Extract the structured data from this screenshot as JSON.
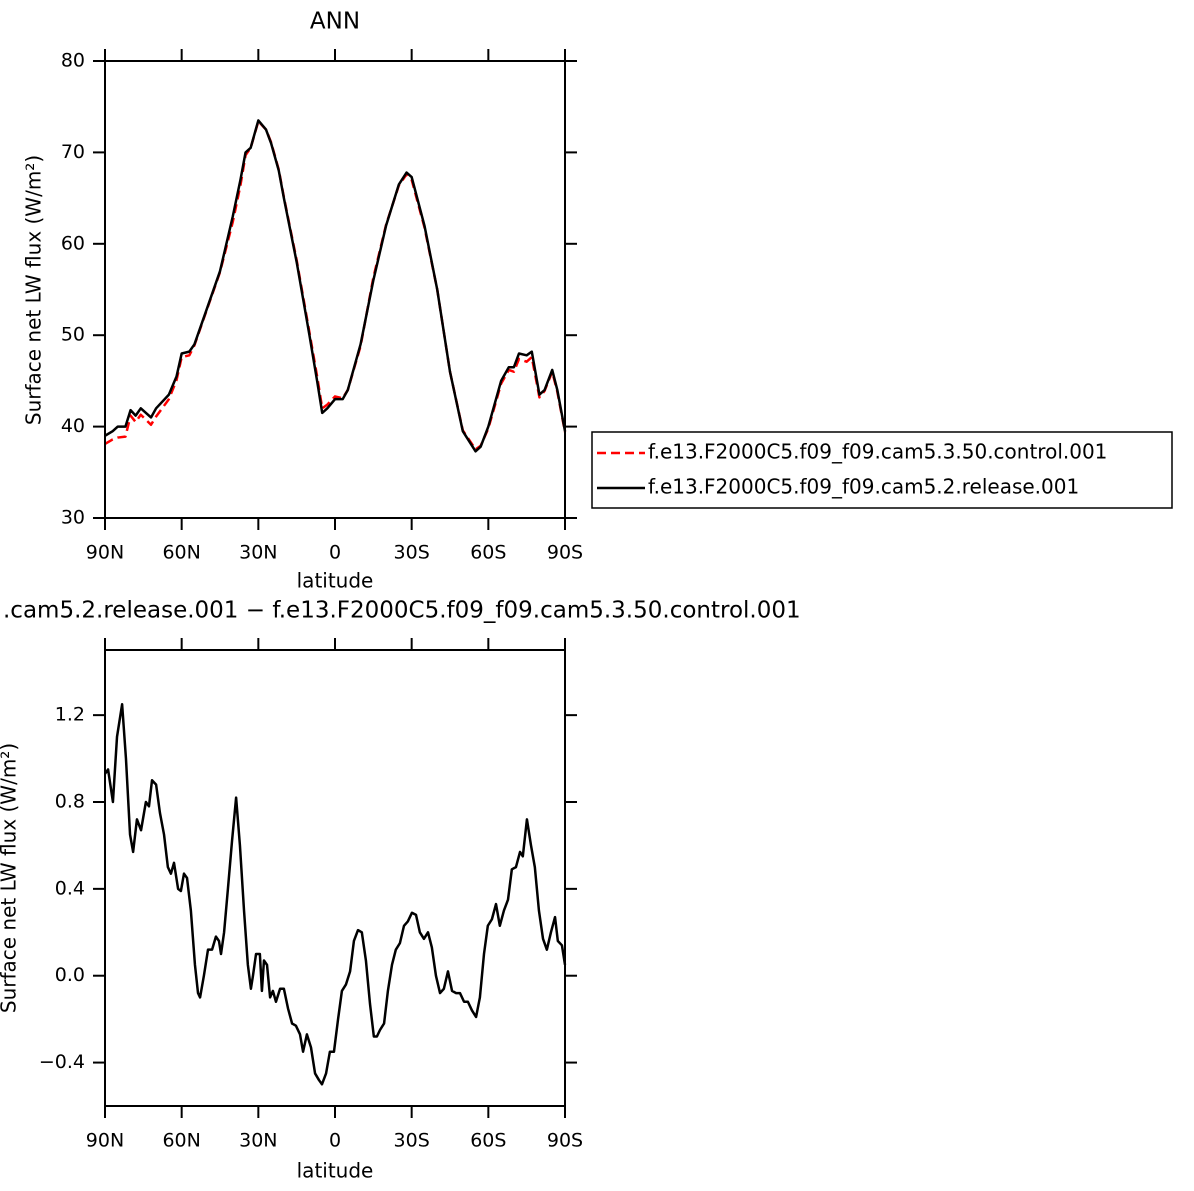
{
  "chart_data": [
    {
      "type": "line",
      "title": "ANN",
      "xlabel": "latitude",
      "ylabel": "Surface net LW flux (W/m²)",
      "x": [
        90,
        87,
        85,
        82,
        80,
        78,
        76,
        72,
        70,
        65,
        62,
        60,
        57,
        55,
        50,
        45,
        40,
        37,
        35,
        33,
        30,
        27,
        25,
        22,
        20,
        15,
        10,
        7,
        5,
        3,
        0,
        -3,
        -5,
        -10,
        -15,
        -20,
        -25,
        -28,
        -30,
        -35,
        -40,
        -45,
        -50,
        -55,
        -57,
        -60,
        -65,
        -68,
        -70,
        -72,
        -75,
        -77,
        -80,
        -82,
        -85,
        -87,
        -90
      ],
      "series": [
        {
          "name": "f.e13.F2000C5.f09_f09.cam5.3.50.control.001",
          "color": "#ff0000",
          "dashed": true,
          "values": [
            38.1,
            38.6,
            38.8,
            38.9,
            41.2,
            40.5,
            41.3,
            40.2,
            41.1,
            43.0,
            45.1,
            47.6,
            47.8,
            48.9,
            52.9,
            56.9,
            62.4,
            66.4,
            69.7,
            70.5,
            73.4,
            72.5,
            71.1,
            68.1,
            65.1,
            58.2,
            50.3,
            45.5,
            42.0,
            42.4,
            43.3,
            43.1,
            44.0,
            48.8,
            56.3,
            62.1,
            66.4,
            67.6,
            67.0,
            61.8,
            55.0,
            46.0,
            39.6,
            37.5,
            37.9,
            39.8,
            44.7,
            46.2,
            46.0,
            47.4,
            47.1,
            47.6,
            43.2,
            43.9,
            46.0,
            43.8,
            39.4
          ]
        },
        {
          "name": "f.e13.F2000C5.f09_f09.cam5.2.release.001",
          "color": "#000000",
          "dashed": false,
          "values": [
            39.0,
            39.5,
            40.0,
            40.0,
            41.8,
            41.2,
            42.0,
            41.0,
            42.0,
            43.5,
            45.5,
            48.0,
            48.2,
            49.0,
            53.0,
            57.0,
            63.0,
            67.0,
            70.0,
            70.5,
            73.5,
            72.5,
            71.0,
            68.0,
            65.0,
            58.0,
            50.0,
            45.0,
            41.5,
            42.0,
            43.0,
            43.0,
            44.0,
            49.0,
            56.0,
            62.0,
            66.5,
            67.8,
            67.3,
            62.0,
            55.0,
            46.0,
            39.5,
            37.3,
            37.8,
            40.0,
            45.0,
            46.5,
            46.5,
            48.0,
            47.8,
            48.2,
            43.5,
            44.0,
            46.2,
            44.0,
            39.5
          ]
        }
      ],
      "xlim": [
        90,
        -90
      ],
      "ylim": [
        30,
        80
      ],
      "xticks": [
        {
          "value": 90,
          "label": "90N"
        },
        {
          "value": 60,
          "label": "60N"
        },
        {
          "value": 30,
          "label": "30N"
        },
        0,
        {
          "value": -30,
          "label": "30S"
        },
        {
          "value": -60,
          "label": "60S"
        },
        {
          "value": -90,
          "label": "90S"
        }
      ],
      "yticks": [
        30,
        40,
        50,
        60,
        70,
        80
      ],
      "legend": "right"
    },
    {
      "type": "line",
      "title": ".cam5.2.release.001 − f.e13.F2000C5.f09_f09.cam5.3.50.control.001",
      "xlabel": "latitude",
      "ylabel": "Surface net LW flux (W/m²)",
      "x": [
        90,
        88.8,
        86.9,
        85.3,
        83.3,
        81.8,
        80.2,
        79.0,
        77.5,
        75.9,
        74.0,
        72.8,
        71.6,
        70.0,
        68.5,
        66.9,
        65.4,
        64.2,
        63.0,
        61.4,
        60.3,
        59.1,
        57.9,
        56.4,
        54.8,
        53.6,
        52.8,
        51.3,
        49.7,
        48.1,
        46.6,
        45.4,
        44.6,
        43.4,
        41.9,
        40.3,
        38.7,
        37.2,
        35.6,
        34.1,
        32.9,
        32.1,
        30.9,
        29.4,
        28.6,
        27.8,
        26.6,
        25.4,
        24.3,
        23.1,
        21.5,
        20.0,
        18.4,
        16.8,
        15.3,
        13.7,
        12.5,
        11.0,
        9.4,
        7.8,
        6.3,
        5.1,
        3.5,
        2.0,
        0.4,
        -1.2,
        -2.7,
        -4.3,
        -5.9,
        -7.4,
        -9.0,
        -10.5,
        -12.1,
        -13.7,
        -15.2,
        -16.4,
        -17.6,
        -19.2,
        -20.7,
        -22.3,
        -23.8,
        -25.4,
        -27.0,
        -28.5,
        -30.1,
        -31.7,
        -33.2,
        -34.8,
        -36.4,
        -37.9,
        -39.5,
        -41.1,
        -42.6,
        -44.2,
        -45.8,
        -47.4,
        -48.9,
        -50.5,
        -52.0,
        -53.6,
        -55.2,
        -56.7,
        -58.3,
        -59.8,
        -61.4,
        -63.0,
        -64.5,
        -66.1,
        -67.7,
        -69.2,
        -70.8,
        -72.4,
        -73.5,
        -75.1,
        -76.7,
        -78.2,
        -79.8,
        -81.4,
        -82.9,
        -84.5,
        -86.1,
        -87.2,
        -88.8,
        -90
      ],
      "series": [
        {
          "color": "#000000",
          "dashed": false,
          "values": [
            0.93,
            0.95,
            0.8,
            1.1,
            1.25,
            1.0,
            0.65,
            0.57,
            0.72,
            0.67,
            0.8,
            0.78,
            0.9,
            0.88,
            0.75,
            0.65,
            0.5,
            0.47,
            0.52,
            0.4,
            0.39,
            0.47,
            0.45,
            0.3,
            0.05,
            -0.08,
            -0.1,
            0.0,
            0.12,
            0.12,
            0.18,
            0.16,
            0.1,
            0.2,
            0.4,
            0.62,
            0.82,
            0.6,
            0.3,
            0.05,
            -0.06,
            0.0,
            0.1,
            0.1,
            -0.07,
            0.07,
            0.05,
            -0.1,
            -0.07,
            -0.12,
            -0.06,
            -0.06,
            -0.15,
            -0.22,
            -0.23,
            -0.27,
            -0.35,
            -0.27,
            -0.33,
            -0.45,
            -0.48,
            -0.5,
            -0.45,
            -0.35,
            -0.35,
            -0.2,
            -0.07,
            -0.04,
            0.02,
            0.16,
            0.21,
            0.2,
            0.07,
            -0.13,
            -0.28,
            -0.28,
            -0.25,
            -0.22,
            -0.07,
            0.05,
            0.12,
            0.15,
            0.23,
            0.25,
            0.29,
            0.28,
            0.2,
            0.17,
            0.2,
            0.13,
            0.0,
            -0.08,
            -0.06,
            0.02,
            -0.07,
            -0.08,
            -0.08,
            -0.12,
            -0.12,
            -0.16,
            -0.19,
            -0.1,
            0.1,
            0.23,
            0.26,
            0.33,
            0.23,
            0.3,
            0.35,
            0.49,
            0.5,
            0.57,
            0.55,
            0.72,
            0.6,
            0.5,
            0.3,
            0.17,
            0.12,
            0.2,
            0.27,
            0.16,
            0.14,
            0.05
          ]
        }
      ],
      "xlim": [
        90,
        -90
      ],
      "ylim": [
        -0.6,
        1.5
      ],
      "xticks": [
        {
          "value": 90,
          "label": "90N"
        },
        {
          "value": 60,
          "label": "60N"
        },
        {
          "value": 30,
          "label": "30N"
        },
        0,
        {
          "value": -30,
          "label": "30S"
        },
        {
          "value": -60,
          "label": "60S"
        },
        {
          "value": -90,
          "label": "90S"
        }
      ],
      "yticks": [
        {
          "value": -0.4,
          "label": "−0.4"
        },
        {
          "value": 0,
          "label": "0.0"
        },
        0.4,
        0.8,
        1.2
      ]
    }
  ]
}
